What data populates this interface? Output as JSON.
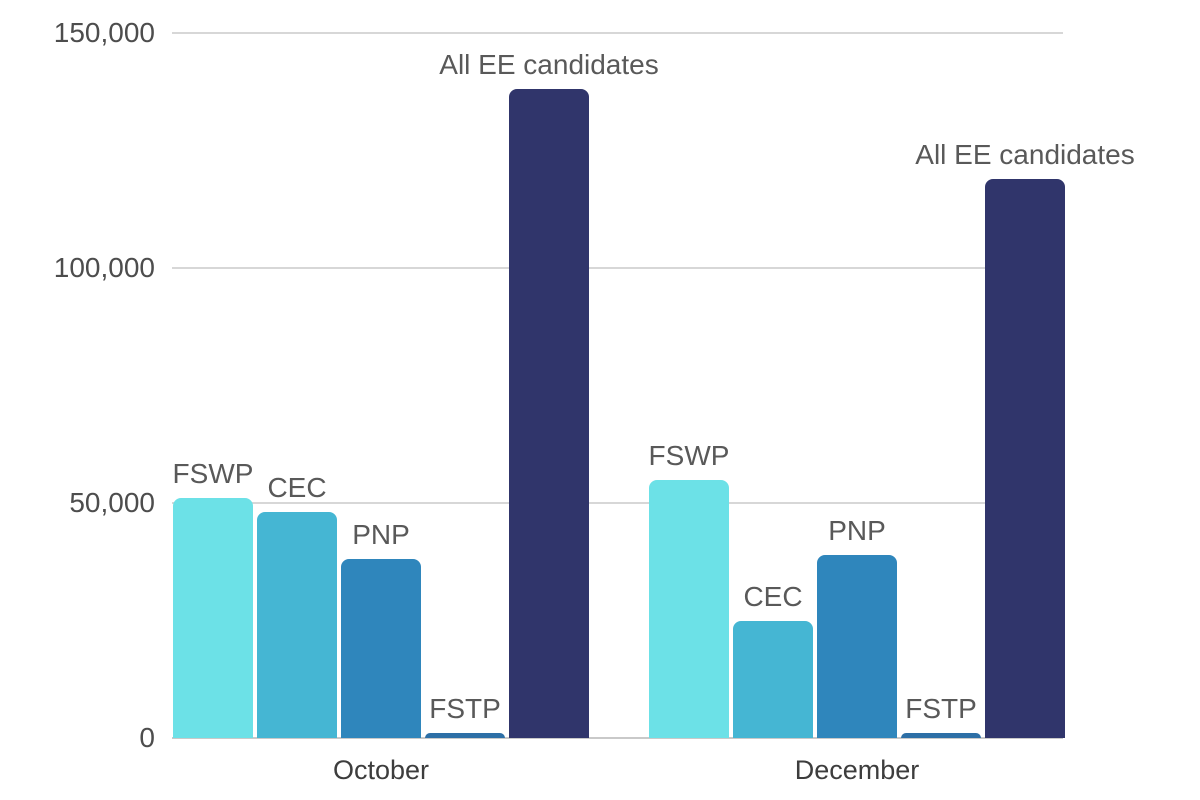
{
  "chart_data": {
    "type": "bar",
    "title": "",
    "categories": [
      "October",
      "December"
    ],
    "series": [
      {
        "name": "FSWP",
        "color": "#6CE1E7",
        "values": [
          51000,
          55000
        ]
      },
      {
        "name": "CEC",
        "color": "#45B6D3",
        "values": [
          48000,
          25000
        ]
      },
      {
        "name": "PNP",
        "color": "#2F86BC",
        "values": [
          38000,
          39000
        ]
      },
      {
        "name": "FSTP",
        "color": "#2D6FA6",
        "values": [
          1000,
          1000
        ]
      },
      {
        "name": "All EE candidates",
        "color": "#30356B",
        "values": [
          138000,
          119000
        ]
      }
    ],
    "xlabel": "",
    "ylabel": "",
    "ylim": [
      0,
      150000
    ],
    "yticks": [
      0,
      50000,
      100000,
      150000
    ],
    "ytick_labels": [
      "0",
      "50,000",
      "100,000",
      "150,000"
    ],
    "grid": true,
    "legend_position": "none",
    "bar_label_style": "series name above each bar"
  },
  "colors": {
    "background": "#ffffff",
    "gridline": "#d7d7d7",
    "axis_baseline": "#c9c9c9",
    "tick_text": "#4d4d4d",
    "bar_label_text": "#595959",
    "category_text": "#3d3d3d"
  }
}
